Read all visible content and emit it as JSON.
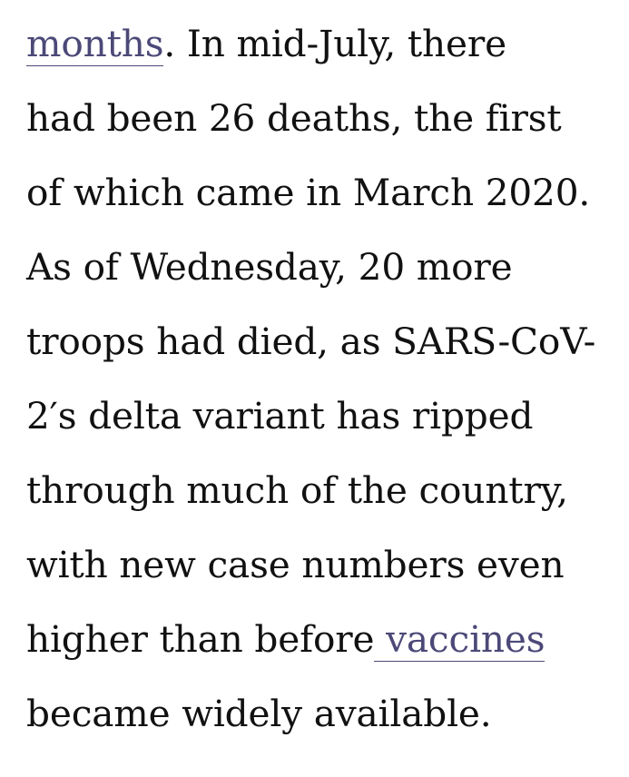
{
  "article": {
    "lines": [
      {
        "link": "months",
        "after": ". In mid-July, there"
      },
      {
        "text": "had been 26 deaths, the first"
      },
      {
        "text": "of which came in March 2020."
      },
      {
        "text": "As of Wednesday, 20 more"
      },
      {
        "text": "troops had died, as SARS-CoV-"
      },
      {
        "text": "2′s delta variant has ripped"
      },
      {
        "text": "through much of the country,"
      },
      {
        "text": "with new case numbers even"
      },
      {
        "before": "higher than before",
        "link": " vaccines"
      },
      {
        "text": "became widely available."
      }
    ]
  },
  "colors": {
    "text": "#111111",
    "link": "#4c4978",
    "background": "#ffffff"
  }
}
